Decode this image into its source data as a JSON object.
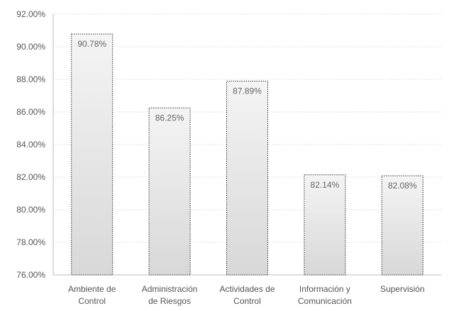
{
  "chart_data": {
    "type": "bar",
    "categories": [
      [
        "Ambiente de",
        "Control"
      ],
      [
        "Administración",
        "de Riesgos"
      ],
      [
        "Actividades de",
        "Control"
      ],
      [
        "Información y",
        "Comunicación"
      ],
      [
        "Supervisión"
      ]
    ],
    "values": [
      90.78,
      86.25,
      87.89,
      82.14,
      82.08
    ],
    "data_labels": [
      "90.78%",
      "86.25%",
      "87.89%",
      "82.14%",
      "82.08%"
    ],
    "ylim": [
      76,
      92
    ],
    "yticks": [
      76,
      78,
      80,
      82,
      84,
      86,
      88,
      90,
      92
    ],
    "ytick_labels": [
      "76.00%",
      "78.00%",
      "80.00%",
      "82.00%",
      "84.00%",
      "86.00%",
      "88.00%",
      "90.00%",
      "92.00%"
    ],
    "grid": true,
    "legend": "none",
    "bar_fill_top": "#f4f4f4",
    "bar_fill_bottom": "#d8d8d8",
    "bar_border": "#333333"
  }
}
